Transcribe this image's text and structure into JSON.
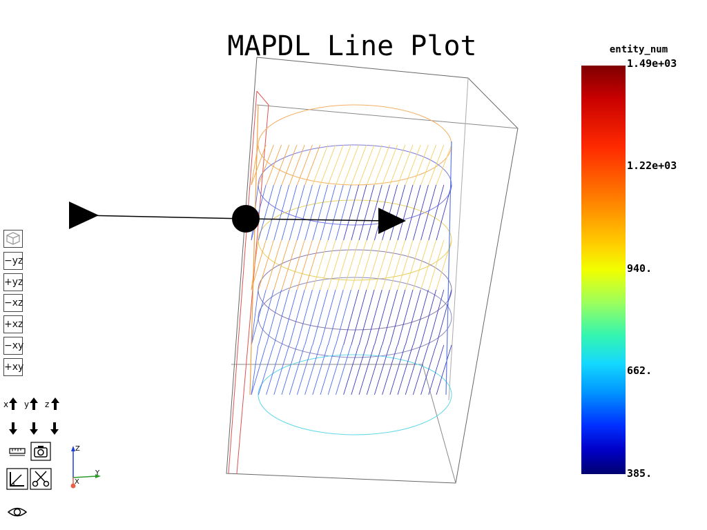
{
  "plot": {
    "title": "MAPDL Line Plot"
  },
  "colorbar": {
    "title": "entity_num",
    "ticks": [
      "1.49e+03",
      "1.22e+03",
      "940.",
      "662.",
      "385."
    ],
    "min": 385,
    "max": 1490
  },
  "view_buttons": [
    "−yz",
    "+yz",
    "−xz",
    "+xz",
    "−xy",
    "+xy"
  ],
  "axes_widget": {
    "x": "X",
    "y": "Y",
    "z": "Z"
  },
  "toolbar_icons": [
    "isometric-view-icon",
    "x-up-icon",
    "y-up-icon",
    "z-up-icon",
    "x-down-icon",
    "y-down-icon",
    "z-down-icon",
    "ruler-icon",
    "camera-icon",
    "measure-angle-icon",
    "scissors-icon",
    "eye-icon"
  ],
  "colors": {
    "low": "#000080",
    "mid": "#00e5ff",
    "high": "#800000",
    "widget": "#000000"
  }
}
